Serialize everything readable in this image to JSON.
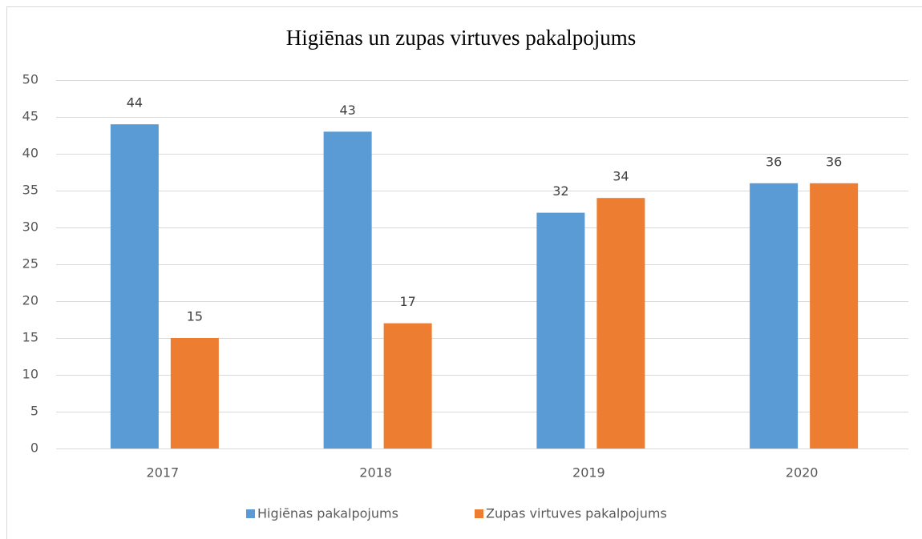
{
  "chart_data": {
    "type": "bar",
    "title": "Higiēnas un zupas virtuves pakalpojums",
    "categories": [
      "2017",
      "2018",
      "2019",
      "2020"
    ],
    "series": [
      {
        "name": "Higiēnas pakalpojums",
        "color": "#5b9bd5",
        "values": [
          44,
          43,
          32,
          36
        ]
      },
      {
        "name": "Zupas virtuves pakalpojums",
        "color": "#ed7d31",
        "values": [
          15,
          17,
          34,
          36
        ]
      }
    ],
    "ylim": [
      0,
      50
    ],
    "yticks": [
      0,
      5,
      10,
      15,
      20,
      25,
      30,
      35,
      40,
      45,
      50
    ],
    "grid": true,
    "legend": "bottom"
  }
}
